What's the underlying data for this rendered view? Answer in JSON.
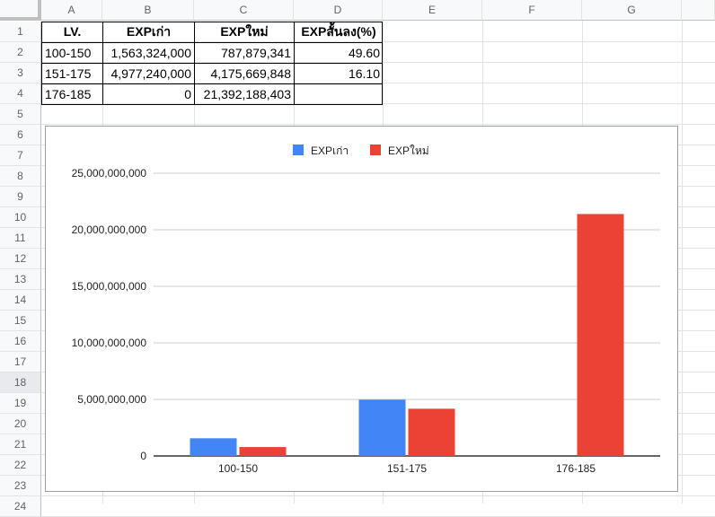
{
  "columns": [
    "A",
    "B",
    "C",
    "D",
    "E",
    "F",
    "G"
  ],
  "rows": [
    "1",
    "2",
    "3",
    "4",
    "5",
    "6",
    "7",
    "8",
    "9",
    "10",
    "11",
    "12",
    "13",
    "14",
    "15",
    "16",
    "17",
    "18",
    "19",
    "20",
    "21",
    "22",
    "23",
    "24"
  ],
  "table": {
    "headers": [
      "LV.",
      "EXPเก่า",
      "EXPใหม่",
      "EXPสั้นลง(%)"
    ],
    "rows": [
      [
        "100-150",
        "1,563,324,000",
        "787,879,341",
        "49.60"
      ],
      [
        "151-175",
        "4,977,240,000",
        "4,175,669,848",
        "16.10"
      ],
      [
        "176-185",
        "0",
        "21,392,188,403",
        ""
      ]
    ]
  },
  "chart_data": {
    "type": "bar",
    "categories": [
      "100-150",
      "151-175",
      "176-185"
    ],
    "series": [
      {
        "name": "EXPเก่า",
        "values": [
          1563324000,
          4977240000,
          0
        ],
        "color": "#4285f4"
      },
      {
        "name": "EXPใหม่",
        "values": [
          787879341,
          4175669848,
          21392188403
        ],
        "color": "#ea4335"
      }
    ],
    "ylim": [
      0,
      25000000000
    ],
    "yticks": [
      0,
      5000000000,
      10000000000,
      15000000000,
      20000000000,
      25000000000
    ],
    "ytick_labels": [
      "0",
      "5,000,000,000",
      "10,000,000,000",
      "15,000,000,000",
      "20,000,000,000",
      "25,000,000,000"
    ],
    "grid": true,
    "legend_position": "top"
  },
  "colors": {
    "header_bg": "#f8f9fa",
    "grid": "#e2e3e3",
    "selected_row": "#e8eaed"
  }
}
